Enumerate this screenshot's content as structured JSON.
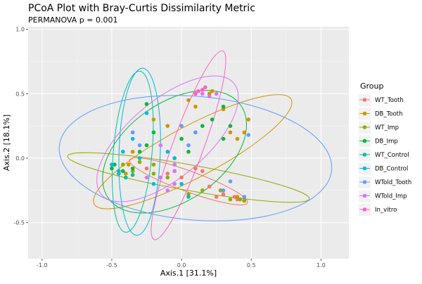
{
  "chart_data": {
    "type": "scatter",
    "title": "PCoA Plot with Bray-Curtis Dissimilarity Metric",
    "subtitle": "PERMANOVA p = 0.001",
    "xlabel": "Axis.1   [31.1%]",
    "ylabel": "Axis.2   [18.1%]",
    "xlim": [
      -1.1,
      1.2
    ],
    "ylim": [
      -0.78,
      1.02
    ],
    "x_ticks": [
      -1.0,
      -0.5,
      0.0,
      0.5,
      1.0
    ],
    "x_tick_labels": [
      "-1.0",
      "-0.5",
      "0.0",
      "0.5",
      "1.0"
    ],
    "y_ticks": [
      -0.5,
      0.0,
      0.5,
      1.0
    ],
    "y_tick_labels": [
      "-0.5",
      "0.0",
      "0.5",
      "1.0"
    ],
    "grid": true,
    "legend_title": "Group",
    "legend_position": "right",
    "series": [
      {
        "name": "WT_Tooth",
        "color": "#F8766D",
        "points": [
          [
            -0.25,
            -0.08
          ],
          [
            -0.1,
            -0.12
          ],
          [
            0.0,
            -0.15
          ],
          [
            0.1,
            -0.08
          ],
          [
            0.2,
            -0.22
          ],
          [
            0.3,
            -0.28
          ],
          [
            0.38,
            -0.3
          ],
          [
            0.4,
            -0.32
          ],
          [
            0.45,
            -0.3
          ],
          [
            0.25,
            -0.3
          ],
          [
            -0.05,
            -0.05
          ],
          [
            0.15,
            -0.1
          ]
        ],
        "ellipse": {
          "center": [
            0.05,
            -0.18
          ],
          "rx": 0.45,
          "ry": 0.08,
          "angle_deg": -20
        }
      },
      {
        "name": "DB_Tooth",
        "color": "#D39200",
        "points": [
          [
            -0.38,
            -0.05
          ],
          [
            -0.4,
            -0.12
          ],
          [
            -0.35,
            0.05
          ],
          [
            -0.2,
            0.3
          ],
          [
            -0.1,
            0.25
          ],
          [
            0.1,
            0.4
          ],
          [
            0.2,
            0.5
          ],
          [
            0.3,
            0.38
          ],
          [
            0.35,
            0.2
          ],
          [
            0.4,
            0.15
          ],
          [
            0.45,
            0.2
          ],
          [
            0.48,
            0.3
          ],
          [
            0.4,
            -0.3
          ],
          [
            0.45,
            -0.33
          ],
          [
            0.22,
            0.52
          ],
          [
            0.05,
            0.45
          ]
        ],
        "ellipse": {
          "center": [
            0.08,
            0.05
          ],
          "rx": 0.8,
          "ry": 0.2,
          "angle_deg": 28
        }
      },
      {
        "name": "WT_Imp",
        "color": "#93AA00",
        "points": [
          [
            -0.42,
            -0.05
          ],
          [
            -0.35,
            -0.1
          ],
          [
            -0.3,
            -0.03
          ],
          [
            -0.2,
            -0.05
          ],
          [
            -0.1,
            -0.15
          ],
          [
            0.05,
            -0.28
          ],
          [
            0.15,
            -0.25
          ],
          [
            0.28,
            -0.25
          ],
          [
            0.35,
            -0.32
          ],
          [
            0.42,
            -0.32
          ],
          [
            0.45,
            -0.33
          ],
          [
            -0.2,
            -0.12
          ]
        ],
        "ellipse": {
          "center": [
            0.05,
            -0.15
          ],
          "rx": 0.88,
          "ry": 0.1,
          "angle_deg": -10
        }
      },
      {
        "name": "DB_Imp",
        "color": "#00BA38",
        "points": [
          [
            -0.5,
            -0.08
          ],
          [
            -0.48,
            -0.05
          ],
          [
            -0.42,
            -0.1
          ],
          [
            -0.35,
            -0.08
          ],
          [
            -0.3,
            0.05
          ],
          [
            -0.25,
            0.1
          ],
          [
            -0.2,
            0.2
          ],
          [
            -0.25,
            0.42
          ],
          [
            0.0,
            0.15
          ],
          [
            0.1,
            0.2
          ],
          [
            0.15,
            0.25
          ],
          [
            0.22,
            0.3
          ],
          [
            0.3,
            0.15
          ],
          [
            0.35,
            0.25
          ],
          [
            0.3,
            0.4
          ],
          [
            -0.05,
            0.0
          ],
          [
            0.05,
            0.05
          ]
        ],
        "ellipse": {
          "center": [
            -0.05,
            0.05
          ],
          "rx": 0.58,
          "ry": 0.38,
          "angle_deg": 35
        }
      },
      {
        "name": "WT_Control",
        "color": "#00C19F",
        "points": [
          [
            -0.45,
            -0.1
          ],
          [
            -0.4,
            -0.15
          ],
          [
            -0.35,
            -0.13
          ],
          [
            -0.5,
            -0.05
          ],
          [
            0.05,
            -0.3
          ]
        ],
        "ellipse": {
          "center": [
            -0.35,
            0.05
          ],
          "rx": 0.58,
          "ry": 0.15,
          "angle_deg": 85
        }
      },
      {
        "name": "DB_Control",
        "color": "#00B9E3",
        "points": [
          [
            -0.5,
            -0.05
          ],
          [
            -0.45,
            -0.12
          ],
          [
            -0.42,
            0.05
          ],
          [
            -0.35,
            0.15
          ],
          [
            -0.3,
            0.0
          ],
          [
            -0.25,
            0.35
          ],
          [
            -0.2,
            -0.2
          ],
          [
            -0.05,
            0.0
          ],
          [
            -0.1,
            0.05
          ],
          [
            0.0,
            -0.2
          ]
        ],
        "ellipse": {
          "center": [
            -0.3,
            0.05
          ],
          "rx": 0.6,
          "ry": 0.16,
          "angle_deg": 88
        }
      },
      {
        "name": "WTold_Tooth",
        "color": "#619CFF",
        "points": [
          [
            -0.35,
            0.2
          ],
          [
            -0.3,
            0.1
          ],
          [
            0.0,
            0.25
          ],
          [
            0.05,
            0.1
          ],
          [
            0.1,
            0.2
          ],
          [
            -0.05,
            -0.1
          ],
          [
            0.35,
            -0.18
          ],
          [
            0.3,
            -0.25
          ],
          [
            0.45,
            -0.3
          ],
          [
            0.48,
            0.18
          ]
        ],
        "ellipse": {
          "center": [
            0.1,
            0.0
          ],
          "rx": 0.98,
          "ry": 0.48,
          "angle_deg": -5
        }
      },
      {
        "name": "WTold_Imp",
        "color": "#DB72FB",
        "points": [
          [
            -0.1,
            -0.25
          ],
          [
            -0.05,
            -0.2
          ],
          [
            -0.15,
            -0.15
          ],
          [
            -0.25,
            -0.15
          ],
          [
            -0.05,
            -0.05
          ],
          [
            0.15,
            0.5
          ],
          [
            0.2,
            0.48
          ],
          [
            0.25,
            0.5
          ],
          [
            -0.15,
            0.1
          ],
          [
            -0.05,
            -0.1
          ]
        ],
        "ellipse": {
          "center": [
            -0.1,
            0.15
          ],
          "rx": 0.62,
          "ry": 0.3,
          "angle_deg": 40
        }
      },
      {
        "name": "In_vitro",
        "color": "#FF61C3",
        "points": [
          [
            0.15,
            0.53
          ],
          [
            0.17,
            0.55
          ],
          [
            0.12,
            0.52
          ],
          [
            0.1,
            0.5
          ]
        ],
        "ellipse": {
          "center": [
            0.05,
            0.1
          ],
          "rx": 0.72,
          "ry": 0.12,
          "angle_deg": 70
        }
      }
    ]
  }
}
